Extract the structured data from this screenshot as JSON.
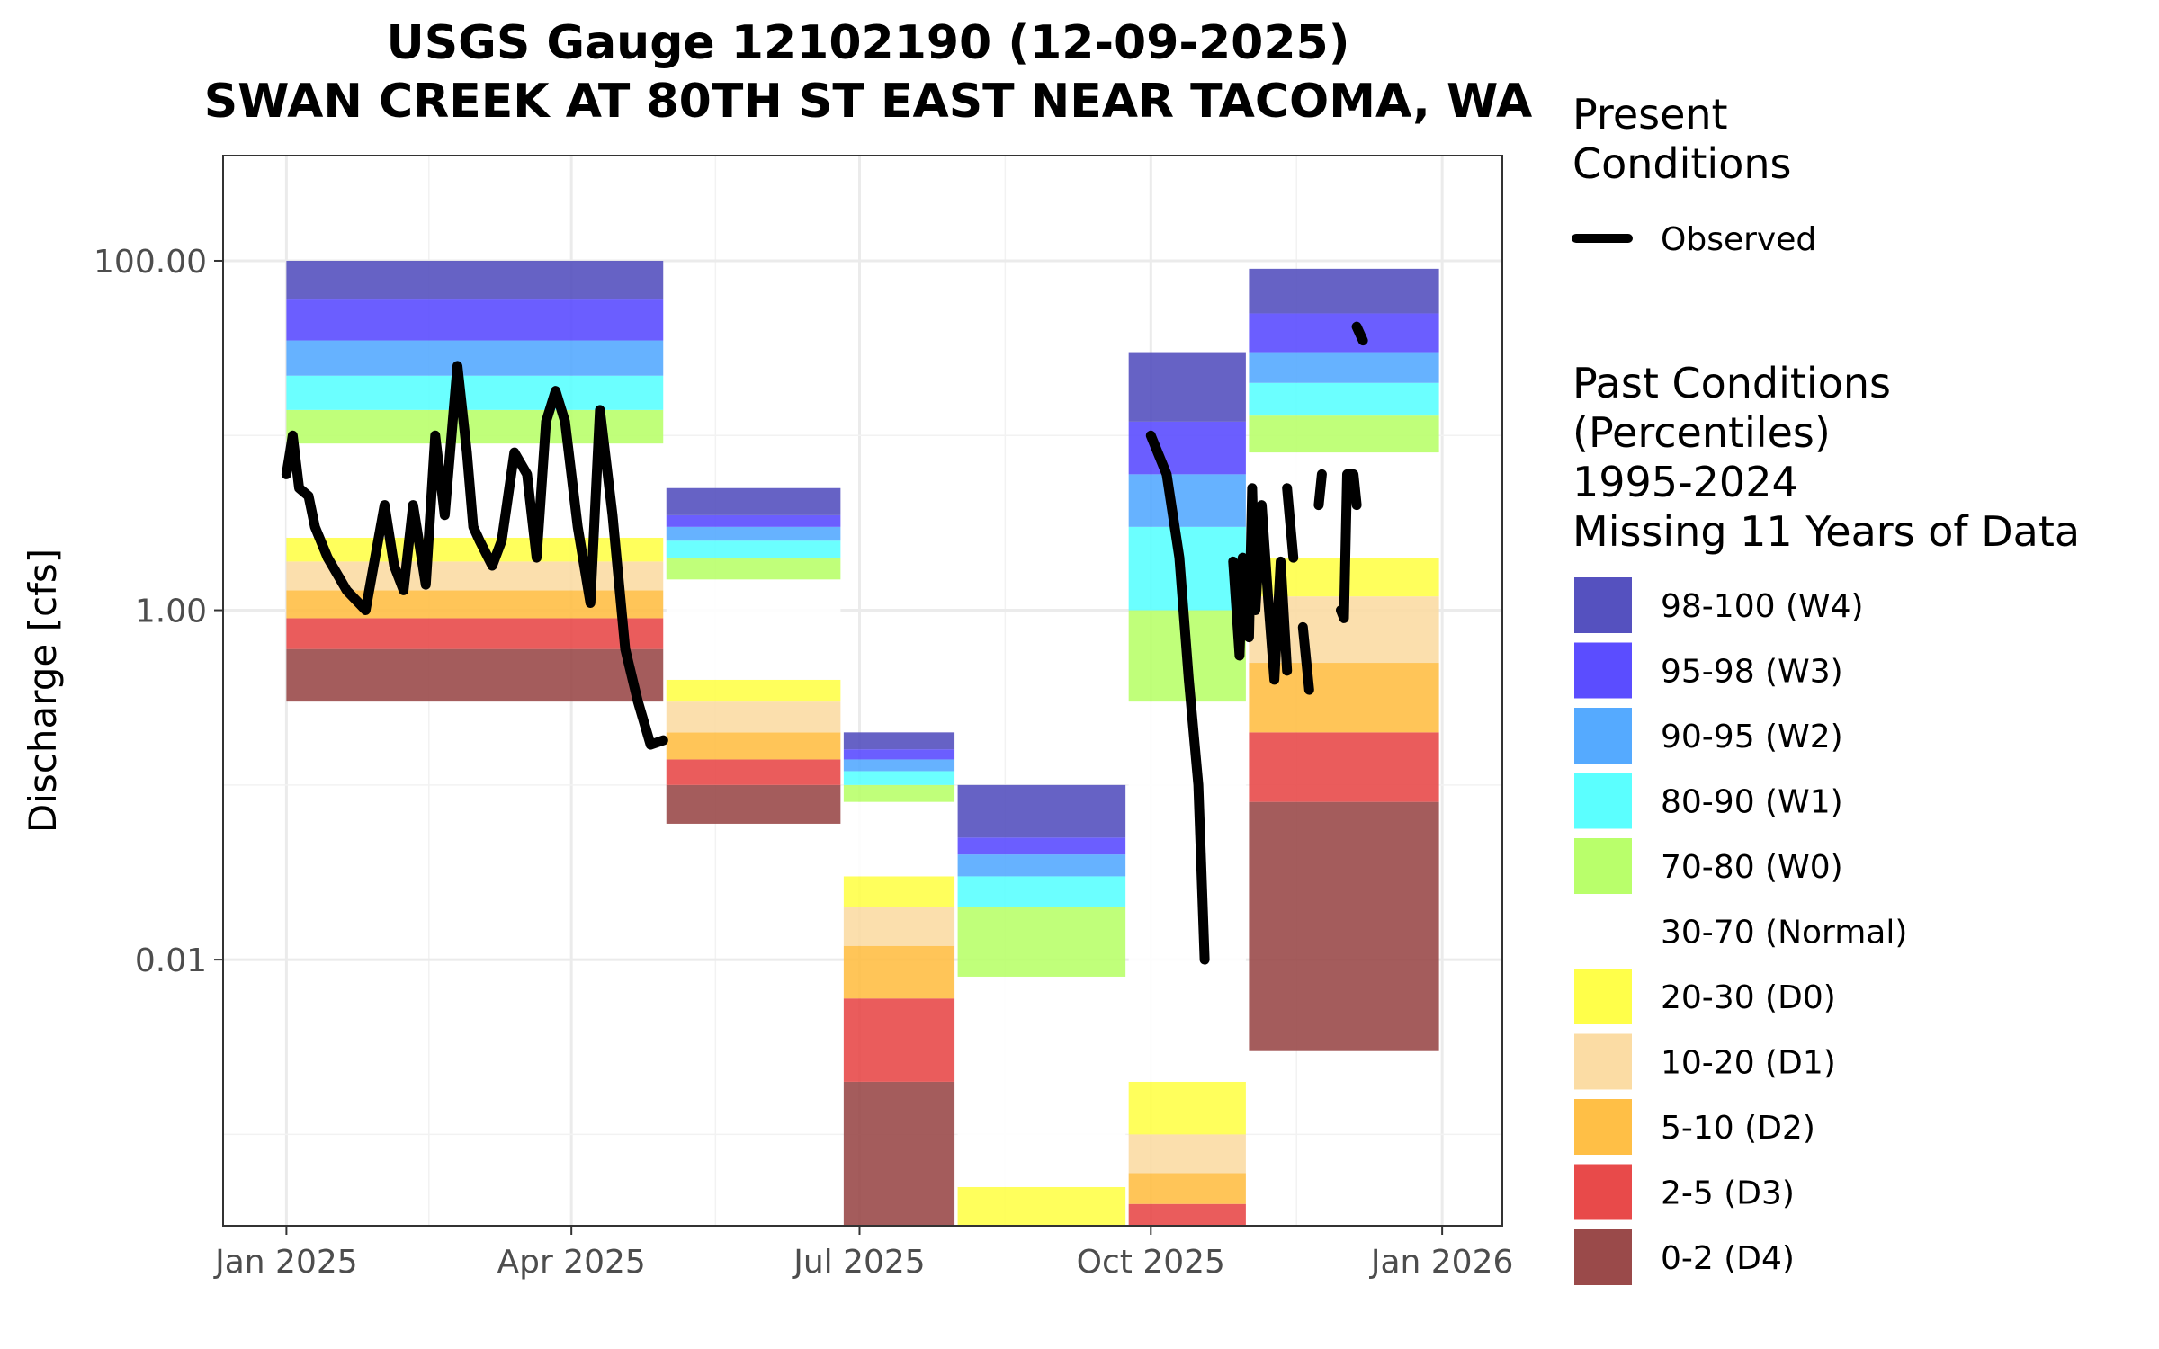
{
  "chart_data": {
    "type": "area",
    "title": "USGS Gauge 12102190 (12-09-2025)",
    "subtitle": "SWAN CREEK AT 80TH ST EAST NEAR TACOMA, WA",
    "xlabel": "",
    "ylabel": "Discharge [cfs]",
    "y_scale": "log",
    "ylim": [
      0.0003,
      400
    ],
    "xlim": [
      "2024-12-12",
      "2026-01-20"
    ],
    "grid": true,
    "legend_position": "right",
    "x_ticks": [
      "Jan 2025",
      "Apr 2025",
      "Jul 2025",
      "Oct 2025",
      "Jan 2026"
    ],
    "x_tick_dates": [
      "2025-01-01",
      "2025-04-01",
      "2025-07-01",
      "2025-10-01",
      "2026-01-01"
    ],
    "y_ticks": [
      "0.01",
      "1.00",
      "100.00"
    ],
    "y_tick_values": [
      0.01,
      1,
      100
    ],
    "legend_present": {
      "title_line1": "Present",
      "title_line2": "Conditions",
      "entries": [
        {
          "label": "Observed",
          "color": "#000000"
        }
      ]
    },
    "legend_past": {
      "title_line1": "Past Conditions",
      "title_line2": "(Percentiles)",
      "title_line3": "1995-2024",
      "title_line4": "Missing 11 Years of Data",
      "entries": [
        {
          "label": "98-100 (W4)",
          "color": "#5551bf"
        },
        {
          "label": "95-98 (W3)",
          "color": "#5b4dff"
        },
        {
          "label": "90-95 (W2)",
          "color": "#55aaff"
        },
        {
          "label": "80-90 (W1)",
          "color": "#5bffff"
        },
        {
          "label": "70-80 (W0)",
          "color": "#b9ff6b"
        },
        {
          "label": "30-70 (Normal)",
          "color": "#ffffff"
        },
        {
          "label": "20-30 (D0)",
          "color": "#ffff4a"
        },
        {
          "label": "10-20 (D1)",
          "color": "#fbdca4"
        },
        {
          "label": "5-10 (D2)",
          "color": "#ffbf46"
        },
        {
          "label": "2-5 (D3)",
          "color": "#e84a4a"
        },
        {
          "label": "0-2 (D4)",
          "color": "#9a4a4a"
        }
      ]
    },
    "percentile_bands": [
      {
        "start": "2025-01-01",
        "end": "2025-04-30",
        "values": {
          "p0": 0.3,
          "p2": 0.6,
          "p5": 0.9,
          "p10": 1.3,
          "p20": 1.9,
          "p30": 2.6,
          "p70": 9,
          "p80": 14,
          "p90": 22,
          "p95": 35,
          "p98": 60,
          "p100": 100
        }
      },
      {
        "start": "2025-05-01",
        "end": "2025-06-25",
        "values": {
          "p0": 0.06,
          "p2": 0.1,
          "p5": 0.14,
          "p10": 0.2,
          "p20": 0.3,
          "p30": 0.4,
          "p70": 1.5,
          "p80": 2,
          "p90": 2.5,
          "p95": 3,
          "p98": 3.5,
          "p100": 5
        }
      },
      {
        "start": "2025-06-26",
        "end": "2025-07-31",
        "values": {
          "p0": 0.0003,
          "p2": 0.002,
          "p5": 0.006,
          "p10": 0.012,
          "p20": 0.02,
          "p30": 0.03,
          "p70": 0.08,
          "p80": 0.1,
          "p90": 0.12,
          "p95": 0.14,
          "p98": 0.16,
          "p100": 0.2
        }
      },
      {
        "start": "2025-08-01",
        "end": "2025-09-23",
        "values": {
          "p0": 0.0003,
          "p2": 0.0003,
          "p5": 0.0003,
          "p10": 0.0003,
          "p20": 0.0003,
          "p30": 0.0005,
          "p70": 0.008,
          "p80": 0.02,
          "p90": 0.03,
          "p95": 0.04,
          "p98": 0.05,
          "p100": 0.1
        }
      },
      {
        "start": "2025-09-24",
        "end": "2025-10-31",
        "values": {
          "p0": 0.0003,
          "p2": 0.0003,
          "p5": 0.0004,
          "p10": 0.0006,
          "p20": 0.001,
          "p30": 0.002,
          "p70": 0.3,
          "p80": 1,
          "p90": 3,
          "p95": 6,
          "p98": 12,
          "p100": 30
        }
      },
      {
        "start": "2025-11-01",
        "end": "2025-12-31",
        "values": {
          "p0": 0.003,
          "p2": 0.08,
          "p5": 0.2,
          "p10": 0.5,
          "p20": 1.2,
          "p30": 2,
          "p70": 8,
          "p80": 13,
          "p90": 20,
          "p95": 30,
          "p98": 50,
          "p100": 90
        }
      }
    ],
    "observed_series": [
      {
        "name": "Observed",
        "segment": 1,
        "x": [
          "2025-01-01",
          "2025-01-03",
          "2025-01-05",
          "2025-01-08",
          "2025-01-10",
          "2025-01-14",
          "2025-01-20",
          "2025-01-26",
          "2025-02-01",
          "2025-02-04",
          "2025-02-07",
          "2025-02-10",
          "2025-02-14",
          "2025-02-17",
          "2025-02-20",
          "2025-02-24",
          "2025-02-27",
          "2025-03-01",
          "2025-03-03",
          "2025-03-07",
          "2025-03-10",
          "2025-03-14",
          "2025-03-18",
          "2025-03-21",
          "2025-03-24",
          "2025-03-27",
          "2025-03-30",
          "2025-04-03",
          "2025-04-07",
          "2025-04-10",
          "2025-04-14",
          "2025-04-18",
          "2025-04-22",
          "2025-04-26",
          "2025-04-30"
        ],
        "y": [
          6,
          10,
          5,
          4.5,
          3,
          2,
          1.3,
          1,
          4,
          1.8,
          1.3,
          4,
          1.4,
          10,
          3.5,
          25,
          8,
          3,
          2.5,
          1.8,
          2.5,
          8,
          6,
          2,
          12,
          18,
          12,
          3,
          1.1,
          14,
          3.5,
          0.6,
          0.3,
          0.17,
          0.18
        ]
      },
      {
        "name": "Observed",
        "segment": 2,
        "x": [
          "2025-10-01",
          "2025-10-06",
          "2025-10-10",
          "2025-10-13",
          "2025-10-16",
          "2025-10-18"
        ],
        "y": [
          10,
          6,
          2,
          0.4,
          0.1,
          0.01
        ]
      },
      {
        "name": "Observed",
        "segment": 3,
        "x": [
          "2025-10-27",
          "2025-10-29",
          "2025-10-30",
          "2025-11-01",
          "2025-11-02",
          "2025-11-03",
          "2025-11-05",
          "2025-11-07",
          "2025-11-09",
          "2025-11-11",
          "2025-11-13"
        ],
        "y": [
          1.9,
          0.55,
          2,
          0.7,
          5,
          1,
          4,
          1.2,
          0.4,
          1.9,
          0.45
        ]
      },
      {
        "name": "Observed",
        "segment": 4,
        "x": [
          "2025-11-13",
          "2025-11-15"
        ],
        "y": [
          5,
          2
        ]
      },
      {
        "name": "Observed",
        "segment": 5,
        "x": [
          "2025-11-18",
          "2025-11-20"
        ],
        "y": [
          0.8,
          0.35
        ]
      },
      {
        "name": "Observed",
        "segment": 6,
        "x": [
          "2025-11-23",
          "2025-11-24"
        ],
        "y": [
          4,
          6
        ]
      },
      {
        "name": "Observed",
        "segment": 7,
        "x": [
          "2025-11-30",
          "2025-12-01",
          "2025-12-02",
          "2025-12-04",
          "2025-12-05"
        ],
        "y": [
          1,
          0.9,
          6,
          6,
          4
        ]
      },
      {
        "name": "Observed",
        "segment": 8,
        "x": [
          "2025-12-05",
          "2025-12-07"
        ],
        "y": [
          42,
          35
        ]
      }
    ]
  }
}
